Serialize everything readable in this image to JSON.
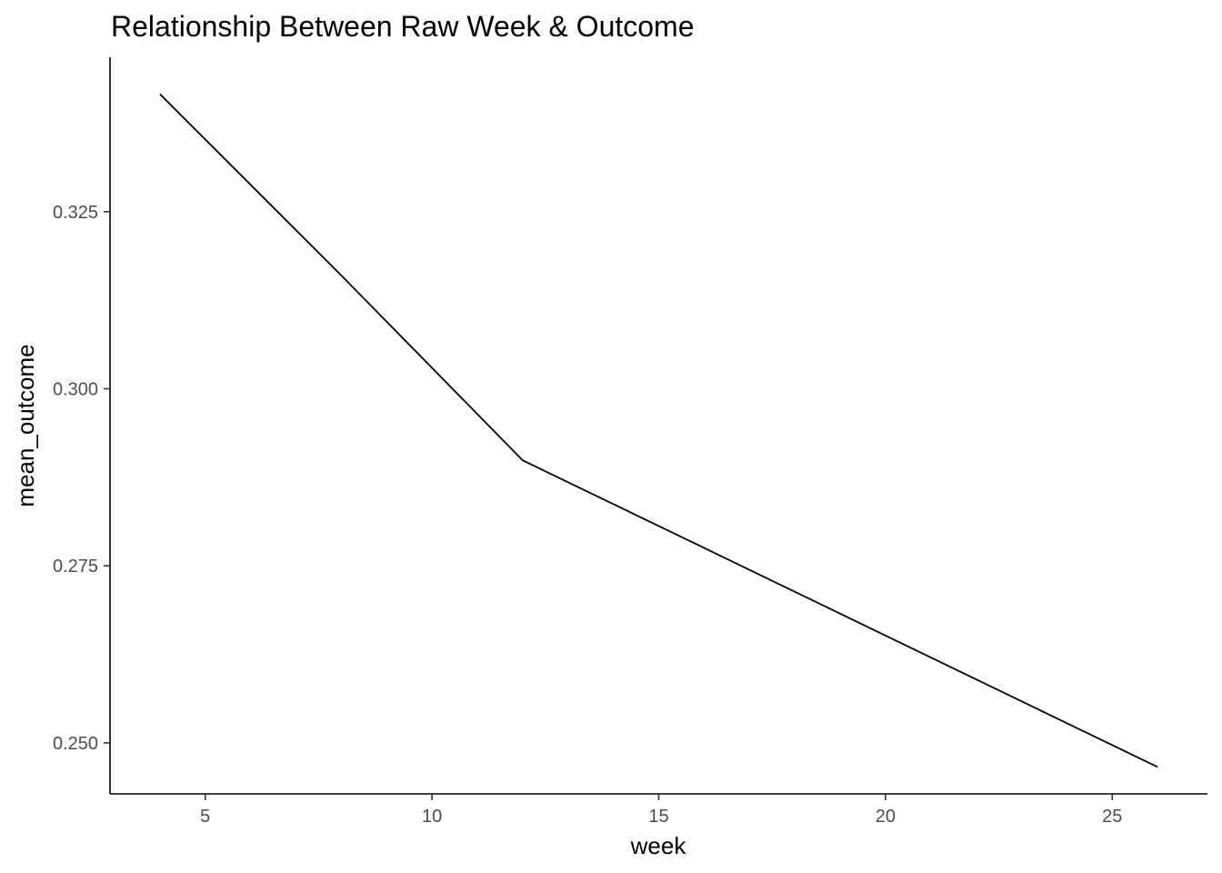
{
  "chart_data": {
    "type": "line",
    "title": "Relationship Between Raw Week & Outcome",
    "xlabel": "week",
    "ylabel": "mean_outcome",
    "xlim": [
      2.9,
      27.1
    ],
    "ylim": [
      0.2428,
      0.3468
    ],
    "x_ticks": [
      5,
      10,
      15,
      20,
      25
    ],
    "x_tick_labels": [
      "5",
      "10",
      "15",
      "20",
      "25"
    ],
    "y_ticks": [
      0.25,
      0.275,
      0.3,
      0.325
    ],
    "y_tick_labels": [
      "0.250",
      "0.275",
      "0.300",
      "0.325"
    ],
    "grid": false,
    "legend": "none",
    "line_color": "#000000",
    "x": [
      4,
      8,
      12,
      26
    ],
    "y": [
      0.3416,
      0.316,
      0.2899,
      0.2466
    ]
  }
}
